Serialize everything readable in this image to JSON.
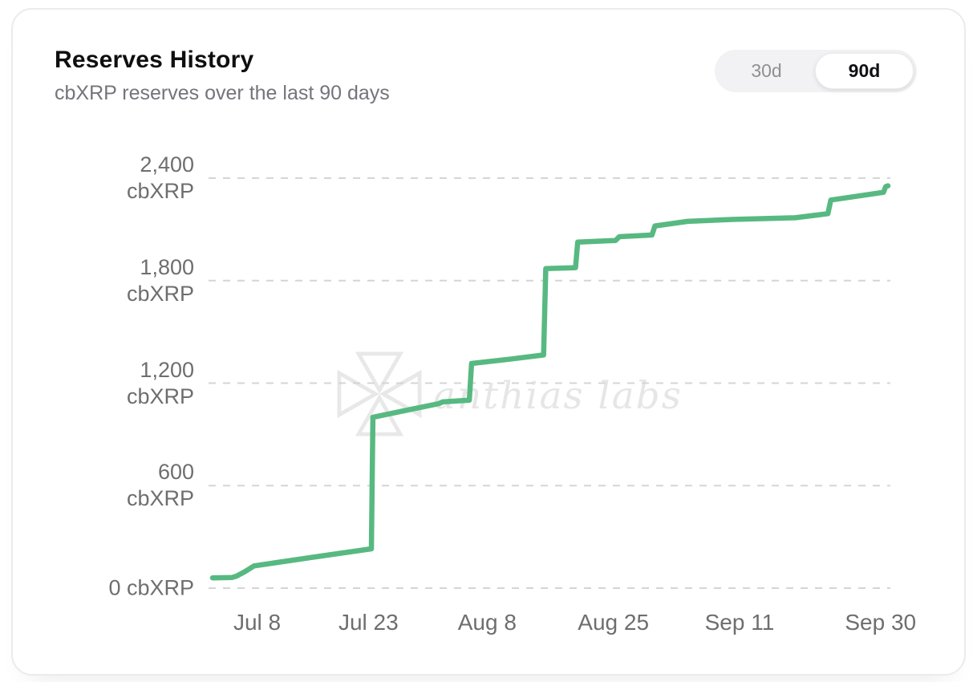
{
  "card": {
    "title": "Reserves History",
    "subtitle": "cbXRP reserves over the last 90 days",
    "range_toggle": {
      "options": [
        "30d",
        "90d"
      ],
      "selected": "90d"
    }
  },
  "watermark": {
    "text": "anthias labs",
    "logo": "anthias-compass-logo",
    "color": "#e6e6e6"
  },
  "chart_data": {
    "type": "line",
    "title": "Reserves History",
    "unit": "cbXRP",
    "line_color": "#57b981",
    "grid_color": "#d5d5d5",
    "axis_text_color": "#6e6e6e",
    "grid": "horizontal-dashed",
    "legend": "none",
    "ylim": [
      0,
      2400
    ],
    "x_domain_days": [
      0,
      91
    ],
    "y_ticks": [
      {
        "value": 2400,
        "lines": [
          "2,400",
          "cbXRP"
        ]
      },
      {
        "value": 1800,
        "lines": [
          "1,800",
          "cbXRP"
        ]
      },
      {
        "value": 1200,
        "lines": [
          "1,200",
          "cbXRP"
        ]
      },
      {
        "value": 600,
        "lines": [
          "600",
          "cbXRP"
        ]
      },
      {
        "value": 0,
        "lines": [
          "0 cbXRP"
        ]
      }
    ],
    "x_ticks": [
      {
        "day": 6,
        "label": "Jul 8"
      },
      {
        "day": 21,
        "label": "Jul 23"
      },
      {
        "day": 37,
        "label": "Aug 8"
      },
      {
        "day": 54,
        "label": "Aug 25"
      },
      {
        "day": 71,
        "label": "Sep 11"
      },
      {
        "day": 90,
        "label": "Sep 30"
      }
    ],
    "series": [
      {
        "name": "cbXRP reserves",
        "points": [
          [
            0,
            60
          ],
          [
            2.6,
            62
          ],
          [
            3.2,
            70
          ],
          [
            4.3,
            95
          ],
          [
            5.6,
            130
          ],
          [
            9,
            152
          ],
          [
            15,
            190
          ],
          [
            21.4,
            230
          ],
          [
            21.6,
            1000
          ],
          [
            26,
            1040
          ],
          [
            30.5,
            1080
          ],
          [
            31,
            1090
          ],
          [
            34.6,
            1100
          ],
          [
            34.9,
            1315
          ],
          [
            40,
            1340
          ],
          [
            44.6,
            1365
          ],
          [
            44.9,
            1870
          ],
          [
            48.9,
            1876
          ],
          [
            49.2,
            2025
          ],
          [
            54.3,
            2035
          ],
          [
            54.8,
            2057
          ],
          [
            59.2,
            2067
          ],
          [
            59.6,
            2120
          ],
          [
            64,
            2147
          ],
          [
            70,
            2158
          ],
          [
            78.5,
            2168
          ],
          [
            82.9,
            2192
          ],
          [
            83.3,
            2272
          ],
          [
            90.4,
            2317
          ],
          [
            90.7,
            2350
          ],
          [
            91,
            2355
          ]
        ]
      }
    ]
  }
}
